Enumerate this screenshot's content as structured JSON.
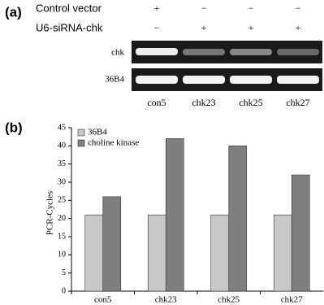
{
  "panel_a": {
    "label": "(a)",
    "rows": [
      {
        "name": "Control vector",
        "signs": [
          "+",
          "−",
          "−",
          "−"
        ]
      },
      {
        "name": "U6-siRNA-chk",
        "signs": [
          "−",
          "+",
          "+",
          "+"
        ]
      }
    ],
    "gel_rows": [
      "chk",
      "36B4"
    ],
    "lanes": [
      "con5",
      "chk23",
      "chk25",
      "chk27"
    ]
  },
  "chart_data": {
    "type": "bar",
    "label": "(b)",
    "y_label": "PCR-Cycles",
    "categories": [
      "con5",
      "chk23",
      "chk25",
      "chk27"
    ],
    "series": [
      {
        "name": "36B4",
        "color": "#c8c8c8",
        "values": [
          21,
          21,
          21,
          21
        ]
      },
      {
        "name": "choline kinase",
        "color": "#7f7f7f",
        "values": [
          26,
          42,
          40,
          32
        ]
      }
    ],
    "ylim": [
      0,
      45
    ],
    "yticks": [
      0,
      5,
      10,
      15,
      20,
      25,
      30,
      35,
      40,
      45
    ],
    "legend": "upper left",
    "grid": false
  }
}
